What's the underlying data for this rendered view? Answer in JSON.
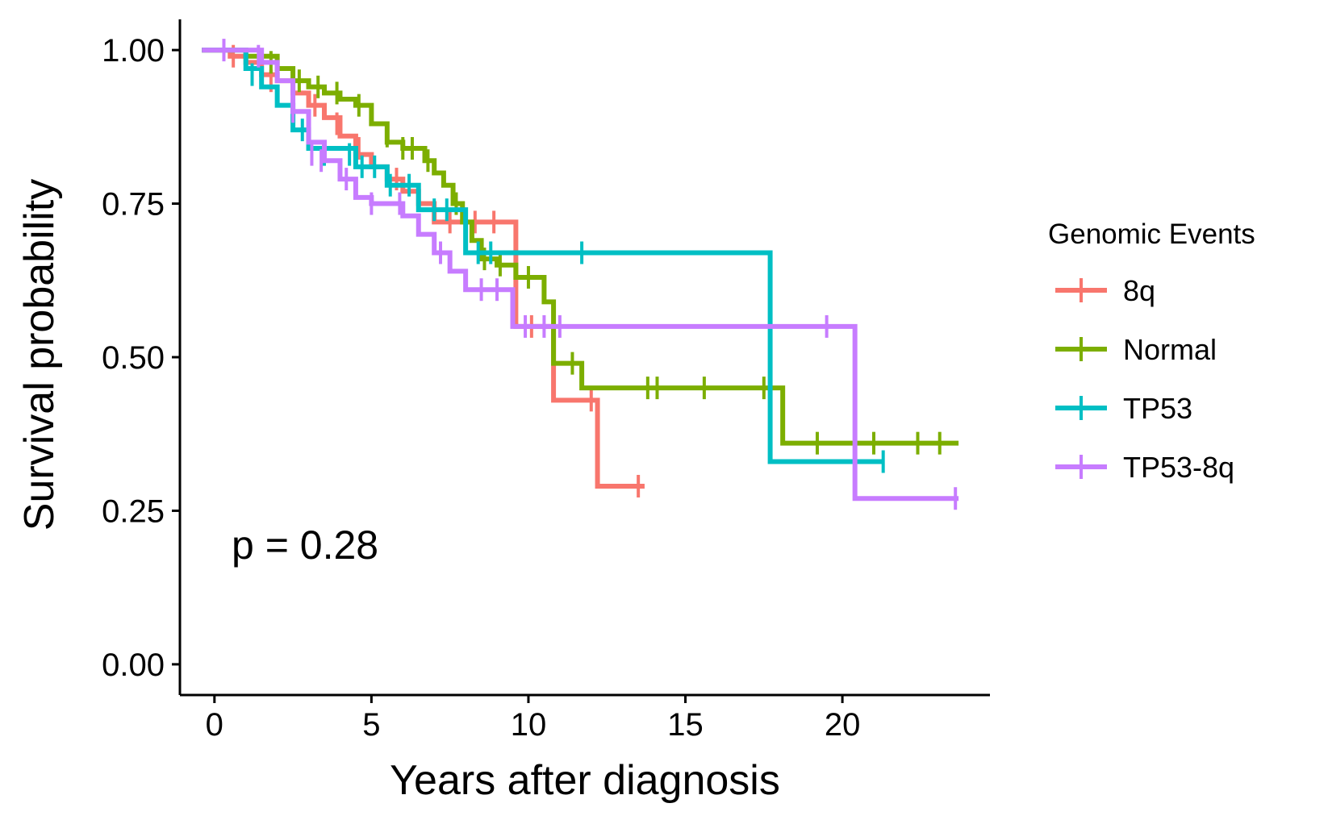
{
  "chart_data": {
    "type": "line",
    "title": "",
    "xlabel": "Years after diagnosis",
    "ylabel": "Survival probability",
    "xlim": [
      -1.1,
      24.7
    ],
    "ylim": [
      -0.05,
      1.05
    ],
    "x_ticks": [
      0,
      5,
      10,
      15,
      20
    ],
    "x_tick_labels": [
      "0",
      "5",
      "10",
      "15",
      "20"
    ],
    "y_ticks": [
      0,
      0.25,
      0.5,
      0.75,
      1.0
    ],
    "y_tick_labels": [
      "0.00",
      "0.25",
      "0.50",
      "0.75",
      "1.00"
    ],
    "grid": false,
    "legend_position": "right",
    "legend_title": "Genomic Events",
    "annotation": "p = 0.28",
    "series": [
      {
        "name": "8q",
        "color": "#F8766D",
        "step_x": [
          -0.4,
          0.5,
          1.0,
          1.5,
          2.0,
          2.5,
          3.0,
          3.5,
          4.0,
          4.5,
          5.0,
          5.5,
          6.0,
          6.5,
          7.0,
          9.4,
          9.6,
          10.8,
          12.2,
          13.7
        ],
        "step_y": [
          1.0,
          0.99,
          0.98,
          0.96,
          0.95,
          0.93,
          0.91,
          0.89,
          0.86,
          0.83,
          0.81,
          0.79,
          0.77,
          0.75,
          0.72,
          0.72,
          0.55,
          0.43,
          0.29,
          0.29
        ],
        "censor_x": [
          0.6,
          1.8,
          3.2,
          3.9,
          4.6,
          5.8,
          7.5,
          8.3,
          8.9,
          10.1,
          12.0,
          13.5
        ],
        "censor_y": [
          0.99,
          0.95,
          0.91,
          0.88,
          0.84,
          0.79,
          0.72,
          0.72,
          0.72,
          0.55,
          0.43,
          0.29
        ]
      },
      {
        "name": "Normal",
        "color": "#7CAE00",
        "step_x": [
          -0.4,
          1.0,
          2.0,
          2.5,
          3.0,
          3.5,
          4.0,
          4.5,
          5.0,
          5.5,
          6.0,
          6.7,
          7.0,
          7.3,
          7.6,
          7.9,
          8.2,
          8.5,
          9.0,
          9.6,
          10.5,
          10.8,
          11.7,
          18.1,
          23.7
        ],
        "step_y": [
          1.0,
          0.99,
          0.97,
          0.95,
          0.94,
          0.93,
          0.92,
          0.91,
          0.88,
          0.85,
          0.84,
          0.82,
          0.8,
          0.78,
          0.75,
          0.72,
          0.69,
          0.66,
          0.65,
          0.63,
          0.59,
          0.49,
          0.45,
          0.36,
          0.36
        ],
        "censor_x": [
          1.8,
          2.7,
          3.3,
          3.9,
          4.6,
          5.5,
          6.0,
          6.3,
          6.8,
          7.7,
          8.6,
          9.1,
          10.0,
          11.4,
          13.8,
          14.1,
          15.6,
          17.5,
          19.2,
          21.0,
          22.4,
          23.1
        ],
        "censor_y": [
          0.98,
          0.95,
          0.94,
          0.93,
          0.91,
          0.86,
          0.84,
          0.84,
          0.82,
          0.75,
          0.66,
          0.65,
          0.63,
          0.49,
          0.45,
          0.45,
          0.45,
          0.45,
          0.36,
          0.36,
          0.36,
          0.36
        ]
      },
      {
        "name": "TP53",
        "color": "#00BFC4",
        "step_x": [
          -0.4,
          1.0,
          1.5,
          2.0,
          2.5,
          3.0,
          4.5,
          5.5,
          6.5,
          8.0,
          17.7,
          21.3
        ],
        "step_y": [
          1.0,
          0.97,
          0.94,
          0.91,
          0.87,
          0.84,
          0.81,
          0.78,
          0.74,
          0.67,
          0.33,
          0.33
        ],
        "censor_x": [
          1.2,
          2.8,
          3.5,
          4.3,
          4.7,
          5.1,
          5.6,
          6.2,
          7.0,
          7.4,
          8.4,
          8.8,
          11.7,
          21.3
        ],
        "censor_y": [
          0.96,
          0.87,
          0.83,
          0.83,
          0.81,
          0.81,
          0.78,
          0.78,
          0.74,
          0.74,
          0.67,
          0.67,
          0.67,
          0.33
        ]
      },
      {
        "name": "TP53-8q",
        "color": "#C77CFF",
        "step_x": [
          -0.4,
          1.5,
          2.0,
          2.5,
          3.0,
          3.5,
          4.0,
          4.5,
          5.0,
          6.0,
          6.5,
          7.0,
          7.5,
          8.0,
          9.5,
          20.4,
          23.7
        ],
        "step_y": [
          1.0,
          0.98,
          0.95,
          0.9,
          0.85,
          0.82,
          0.79,
          0.76,
          0.75,
          0.73,
          0.7,
          0.67,
          0.64,
          0.61,
          0.55,
          0.27,
          0.27
        ],
        "censor_x": [
          0.3,
          1.4,
          2.5,
          3.1,
          3.4,
          4.2,
          5.0,
          5.9,
          7.2,
          8.5,
          9.0,
          9.9,
          10.5,
          11.0,
          19.5,
          23.6
        ],
        "censor_y": [
          1.0,
          0.99,
          0.9,
          0.83,
          0.82,
          0.79,
          0.75,
          0.75,
          0.67,
          0.61,
          0.61,
          0.55,
          0.55,
          0.55,
          0.55,
          0.27
        ]
      }
    ]
  }
}
